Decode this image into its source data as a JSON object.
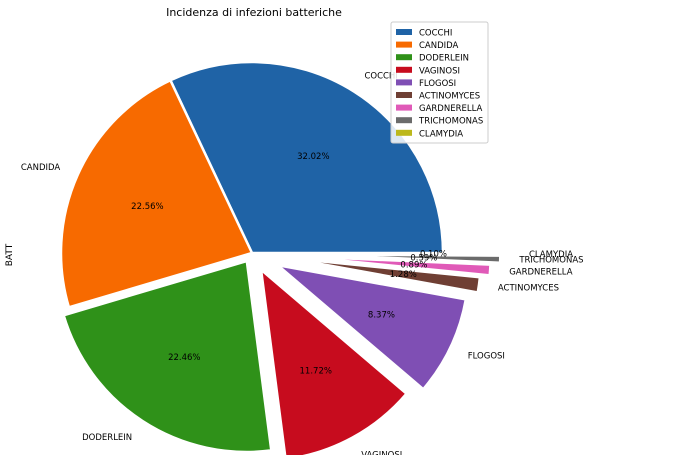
{
  "chart_data": {
    "type": "pie",
    "title": "Incidenza di infezioni batteriche",
    "ylabel": "BATT",
    "legend_position": "top-right",
    "slices": [
      {
        "label": "COCCHI",
        "pct_label": "32.02%",
        "value": 32.02,
        "color": "#1f63a6",
        "explode": 0.0
      },
      {
        "label": "CANDIDA",
        "pct_label": "22.56%",
        "value": 22.56,
        "color": "#f76a00",
        "explode": 0.0
      },
      {
        "label": "DODERLEIN",
        "pct_label": "22.46%",
        "value": 22.46,
        "color": "#2f9119",
        "explode": 0.05
      },
      {
        "label": "VAGINOSI",
        "pct_label": "11.72%",
        "value": 11.72,
        "color": "#c70c1e",
        "explode": 0.1
      },
      {
        "label": "FLOGOSI",
        "pct_label": "8.37%",
        "value": 8.37,
        "color": "#7f4fb4",
        "explode": 0.15
      },
      {
        "label": "ACTINOMYCES",
        "pct_label": "1.28%",
        "value": 1.28,
        "color": "#6f3f34",
        "explode": 0.2
      },
      {
        "label": "GARDNERELLA",
        "pct_label": "0.89%",
        "value": 0.89,
        "color": "#e05ab8",
        "explode": 0.25
      },
      {
        "label": "TRICHOMONAS",
        "pct_label": "0.59%",
        "value": 0.59,
        "color": "#6b6b6b",
        "explode": 0.3
      },
      {
        "label": "CLAMYDIA",
        "pct_label": "0.10%",
        "value": 0.1,
        "color": "#bcb81c",
        "explode": 0.35
      }
    ]
  }
}
